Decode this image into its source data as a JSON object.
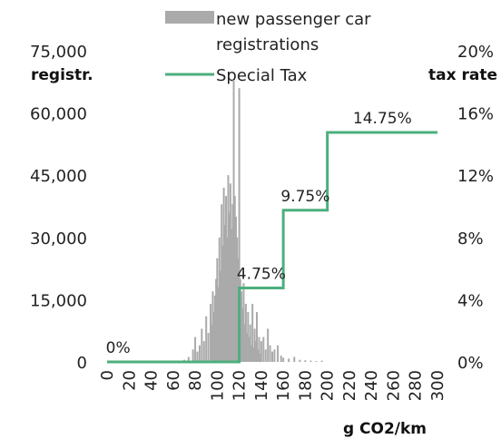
{
  "chart_data": {
    "type": "bar",
    "legend": {
      "position": "top",
      "entries": [
        "new passenger car registrations",
        "Special Tax"
      ]
    },
    "xlabel": "g CO2/km",
    "y_left_label": "registr.",
    "y_right_label": "tax rate",
    "xlim": [
      0,
      300
    ],
    "ylim_left": [
      0,
      75000
    ],
    "ylim_right": [
      0,
      20
    ],
    "x_ticks": [
      "0",
      "20",
      "40",
      "60",
      "80",
      "100",
      "120",
      "140",
      "160",
      "180",
      "200",
      "220",
      "240",
      "260",
      "280",
      "300"
    ],
    "y_left_ticks": [
      "0",
      "15,000",
      "30,000",
      "45,000",
      "60,000",
      "75,000"
    ],
    "y_right_ticks": [
      "0%",
      "4%",
      "8%",
      "12%",
      "16%",
      "20%"
    ],
    "series": [
      {
        "name": "new passenger car registrations",
        "type": "bar",
        "color": "#aaaaaa",
        "x": [
          70,
          74,
          78,
          80,
          82,
          84,
          86,
          88,
          90,
          92,
          94,
          95,
          96,
          97,
          98,
          99,
          100,
          101,
          102,
          103,
          104,
          105,
          106,
          107,
          108,
          109,
          110,
          111,
          112,
          113,
          114,
          115,
          116,
          117,
          118,
          119,
          120,
          121,
          122,
          123,
          124,
          125,
          126,
          127,
          128,
          129,
          130,
          131,
          132,
          133,
          134,
          135,
          136,
          137,
          138,
          139,
          140,
          142,
          144,
          146,
          148,
          150,
          152,
          155,
          158,
          160,
          165,
          170,
          175,
          180,
          185,
          190,
          195
        ],
        "values": [
          500,
          1200,
          3000,
          6000,
          2500,
          4000,
          8000,
          5000,
          11000,
          7000,
          14000,
          9000,
          17000,
          12000,
          16000,
          20000,
          25000,
          18000,
          30000,
          22000,
          38000,
          28000,
          42000,
          33000,
          40000,
          30000,
          45000,
          36000,
          43000,
          32000,
          38000,
          68000,
          40000,
          35000,
          30000,
          25000,
          66000,
          20000,
          17000,
          13000,
          19000,
          9000,
          14000,
          7000,
          12000,
          6000,
          9000,
          4000,
          14000,
          3500,
          8000,
          5000,
          12000,
          3000,
          6000,
          2000,
          5000,
          6000,
          3000,
          8000,
          4000,
          2500,
          3000,
          4000,
          1500,
          1000,
          800,
          1200,
          500,
          400,
          300,
          200,
          300
        ]
      },
      {
        "name": "Special Tax",
        "type": "step",
        "color": "#4caf7d",
        "points": [
          [
            0,
            0
          ],
          [
            120,
            0
          ],
          [
            120,
            4.75
          ],
          [
            160,
            4.75
          ],
          [
            160,
            9.75
          ],
          [
            200,
            9.75
          ],
          [
            200,
            14.75
          ],
          [
            300,
            14.75
          ]
        ],
        "labels": [
          {
            "x": 10,
            "y": 0,
            "text": "0%"
          },
          {
            "x": 140,
            "y": 4.75,
            "text": "4.75%"
          },
          {
            "x": 180,
            "y": 9.75,
            "text": "9.75%"
          },
          {
            "x": 250,
            "y": 14.75,
            "text": "14.75%"
          }
        ]
      }
    ]
  }
}
